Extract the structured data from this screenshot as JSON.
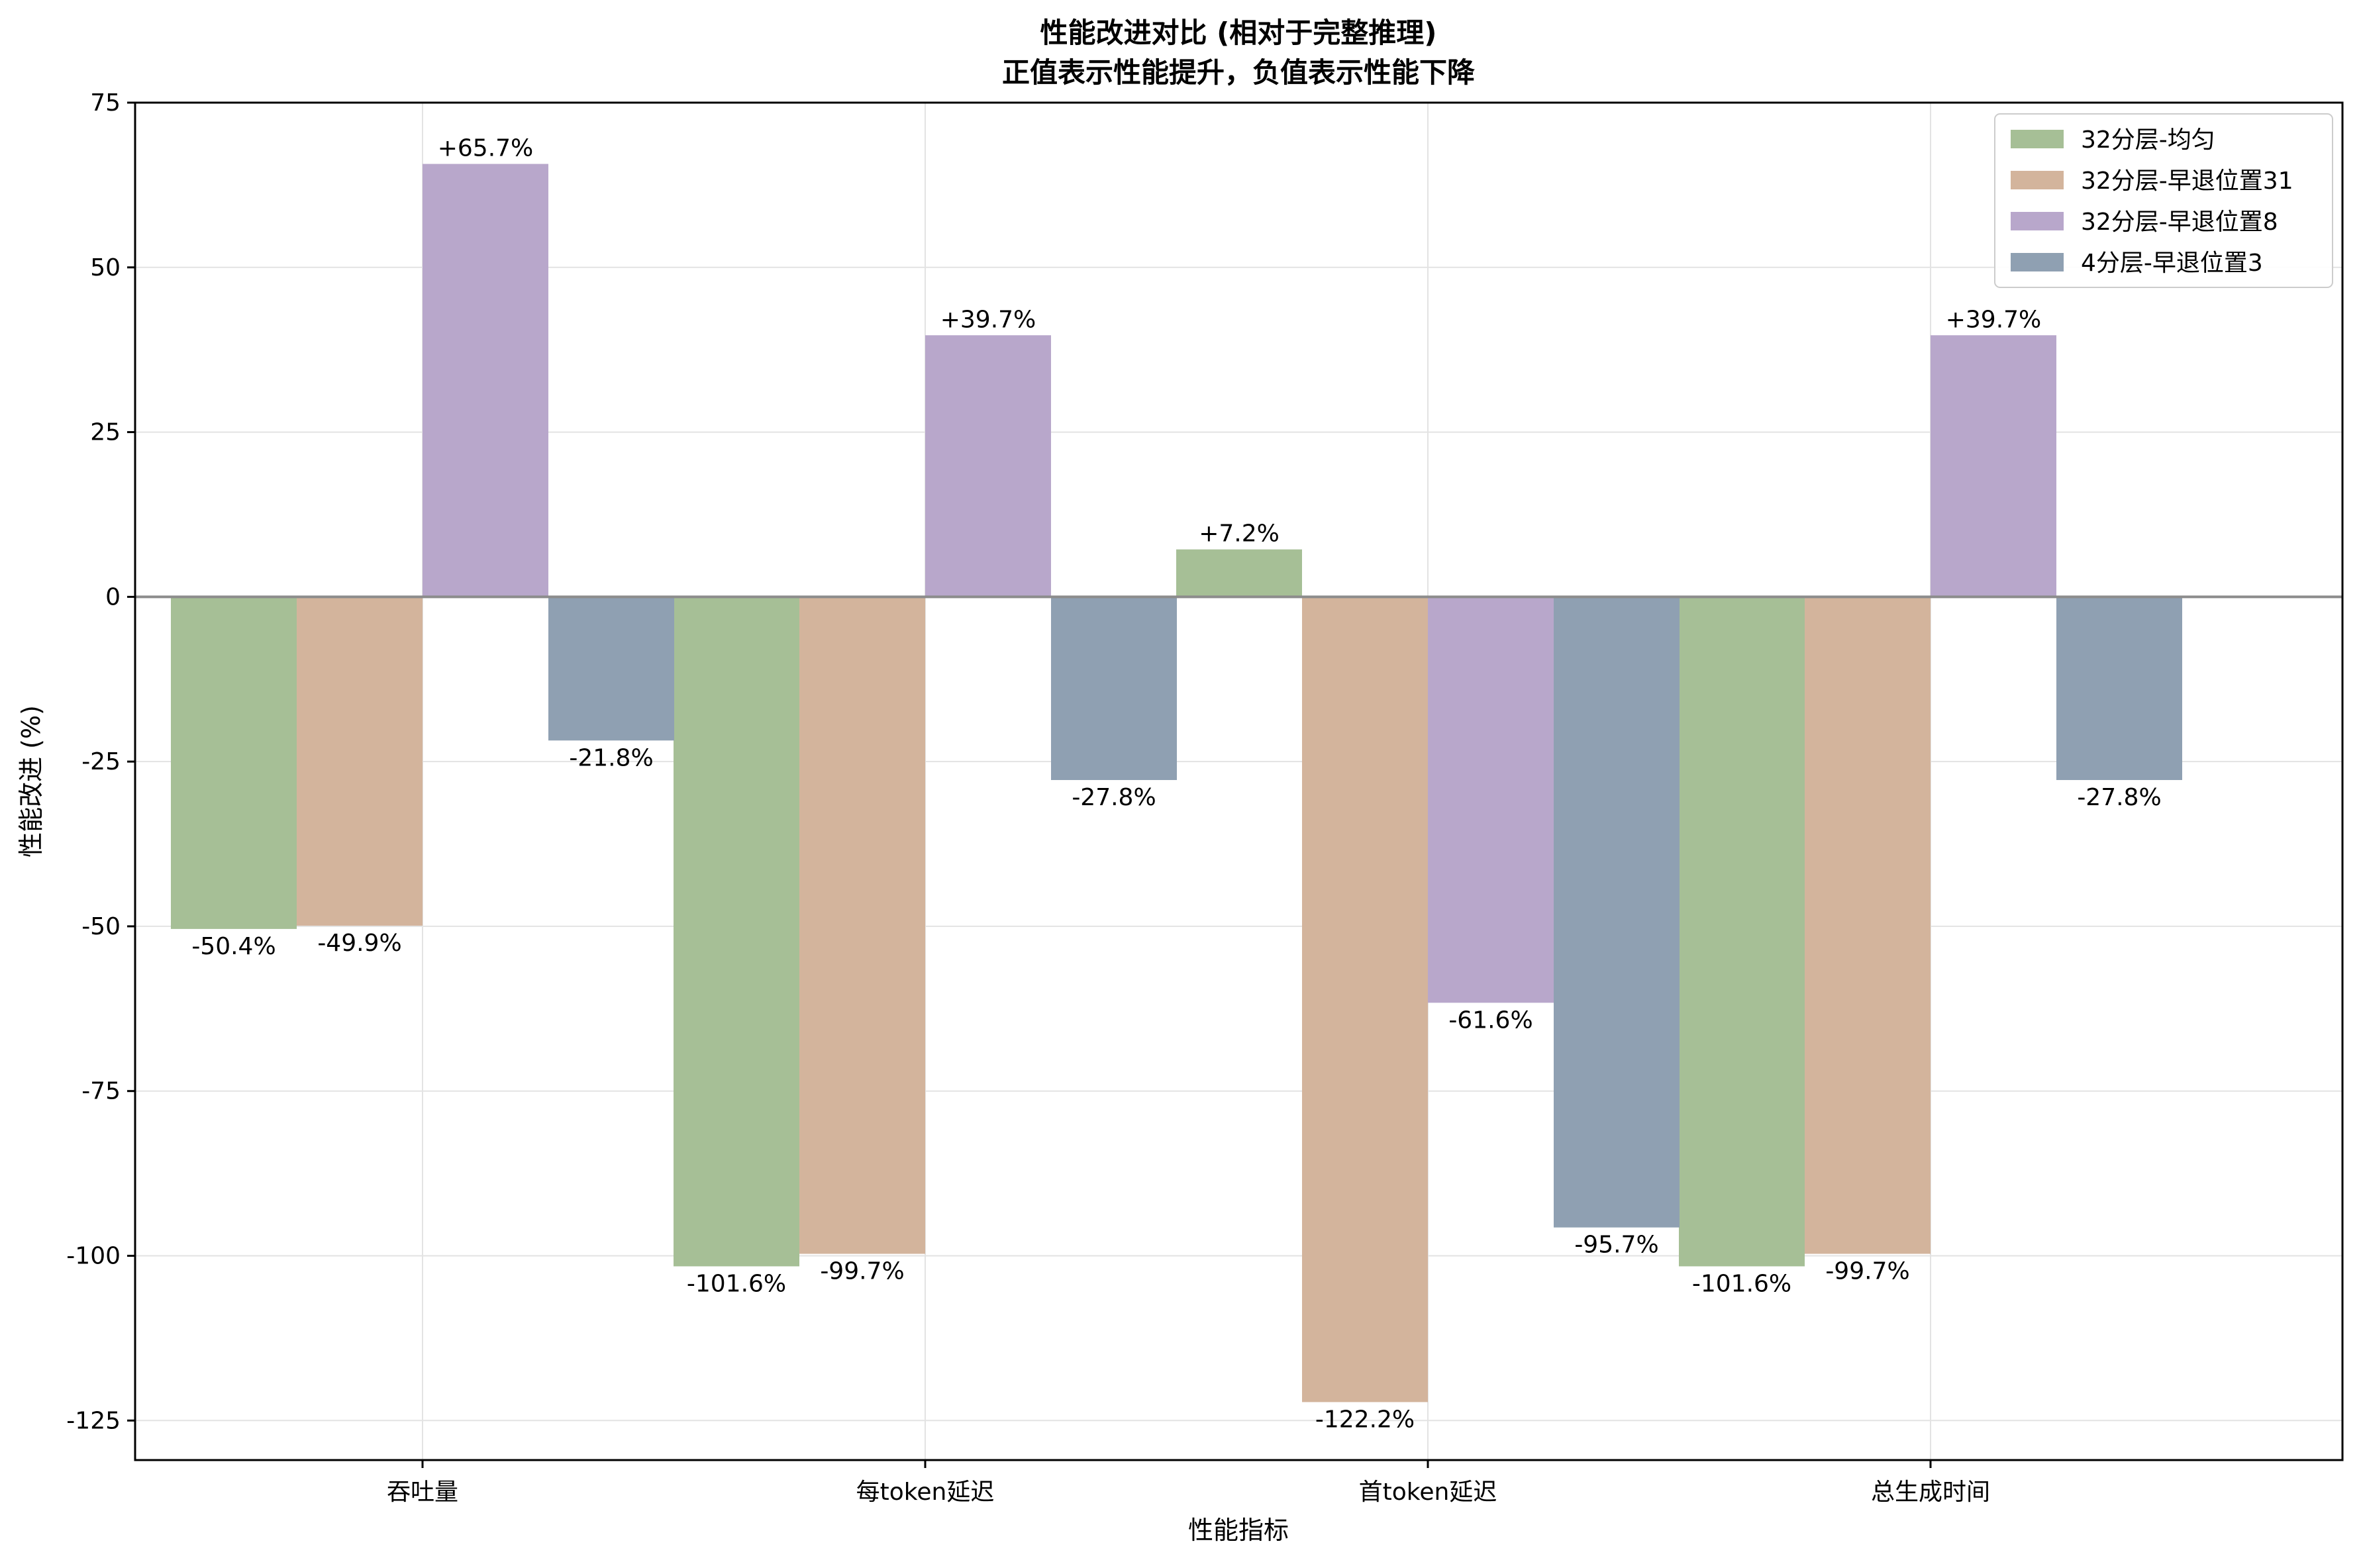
{
  "chart_data": {
    "type": "bar",
    "title": [
      "性能改进对比 (相对于完整推理)",
      "正值表示性能提升，负值表示性能下降"
    ],
    "xlabel": "性能指标",
    "ylabel": "性能改进 (%)",
    "categories": [
      "吞吐量",
      "每token延迟",
      "首token延迟",
      "总生成时间"
    ],
    "ylim": [
      -131,
      75
    ],
    "yticks": [
      75,
      50,
      25,
      0,
      -25,
      -50,
      -75,
      -100,
      -125
    ],
    "grid": true,
    "legend_position": "top-right",
    "series": [
      {
        "name": "32分层-均匀",
        "color": "#a6bf96",
        "values": [
          -50.4,
          -101.6,
          7.2,
          -101.6
        ],
        "labels": [
          "-50.4%",
          "-101.6%",
          "+7.2%",
          "-101.6%"
        ]
      },
      {
        "name": "32分层-早退位置31",
        "color": "#d3b49c",
        "values": [
          -49.9,
          -99.7,
          -122.2,
          -99.7
        ],
        "labels": [
          "-49.9%",
          "-99.7%",
          "-122.2%",
          "-99.7%"
        ]
      },
      {
        "name": "32分层-早退位置8",
        "color": "#b8a7cb",
        "values": [
          65.7,
          39.7,
          -61.6,
          39.7
        ],
        "labels": [
          "+65.7%",
          "+39.7%",
          "-61.6%",
          "+39.7%"
        ]
      },
      {
        "name": "4分层-早退位置3",
        "color": "#8fa0b2",
        "values": [
          -21.8,
          -27.8,
          -95.7,
          -27.8
        ],
        "labels": [
          "-21.8%",
          "-27.8%",
          "-95.7%",
          "-27.8%"
        ]
      }
    ]
  }
}
